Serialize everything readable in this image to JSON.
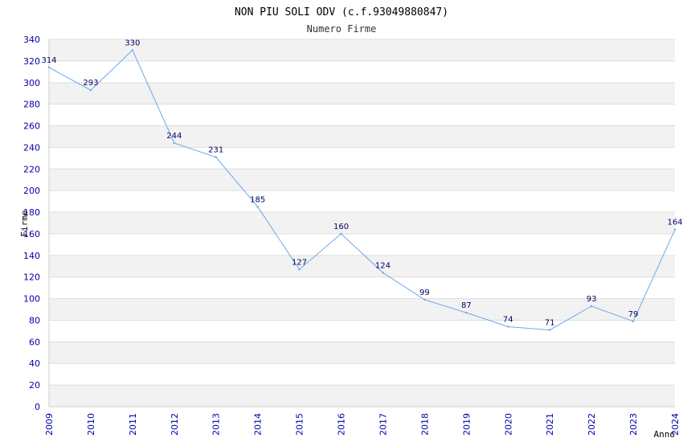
{
  "chart_data": {
    "type": "line",
    "title": "NON PIU SOLI ODV (c.f.93049880847)",
    "subtitle": "Numero Firme",
    "xlabel": "Anno",
    "ylabel": "Firme",
    "x": [
      "2009",
      "2010",
      "2011",
      "2012",
      "2013",
      "2014",
      "2015",
      "2016",
      "2017",
      "2018",
      "2019",
      "2020",
      "2021",
      "2022",
      "2023",
      "2024"
    ],
    "series": [
      {
        "values": [
          314,
          293,
          330,
          244,
          231,
          185,
          127,
          160,
          124,
          99,
          87,
          74,
          71,
          93,
          79,
          164
        ]
      }
    ],
    "ylim": [
      0,
      340
    ],
    "yticks": [
      0,
      20,
      40,
      60,
      80,
      100,
      120,
      140,
      160,
      180,
      200,
      220,
      240,
      260,
      280,
      300,
      320,
      340
    ],
    "grid": "horizontal-bands",
    "legend": "none",
    "colors": {
      "line": "#6aa9e9",
      "tick_text": "#0000aa",
      "label_text": "#000066",
      "band": "#f2f2f2",
      "grid": "#dddddd"
    }
  }
}
